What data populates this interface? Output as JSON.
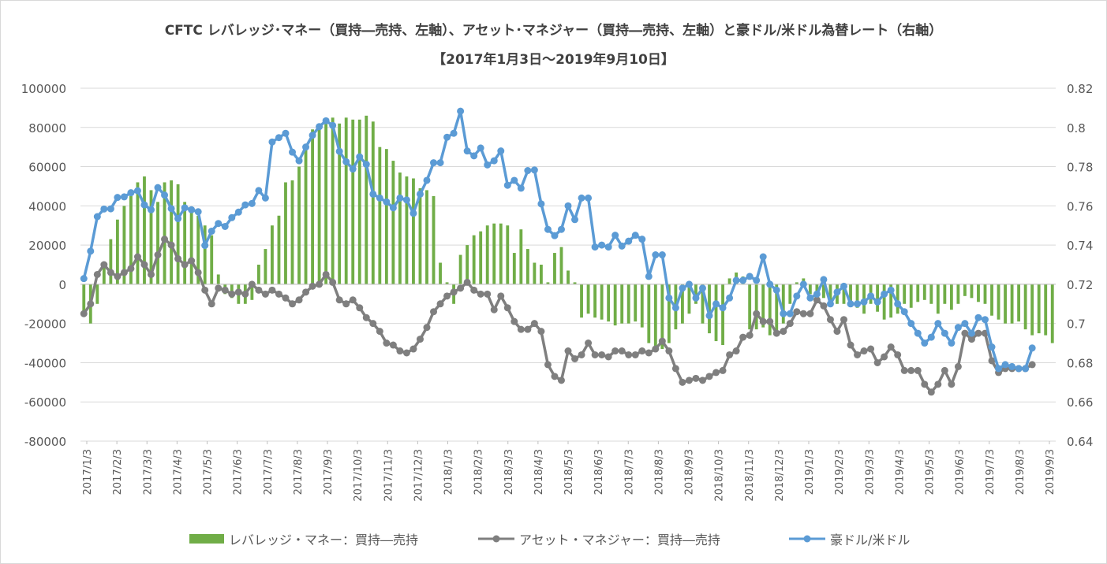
{
  "chart_data": {
    "type": "bar+line",
    "title": "CFTC レバレッジ･マネー（買持―売持、左軸）、アセット･マネジャー（買持―売持、左軸）と豪ドル/米ドル為替レート（右軸）",
    "subtitle": "【2017年1月3日～2019年9月10日】",
    "y_left": {
      "min": -80000,
      "max": 100000,
      "step": 20000,
      "ticks": [
        "100000",
        "80000",
        "60000",
        "40000",
        "20000",
        "0",
        "-20000",
        "-40000",
        "-60000",
        "-80000"
      ]
    },
    "y_right": {
      "min": 0.64,
      "max": 0.82,
      "step": 0.02,
      "ticks": [
        "0.82",
        "0.8",
        "0.78",
        "0.76",
        "0.74",
        "0.72",
        "0.7",
        "0.68",
        "0.66",
        "0.64"
      ]
    },
    "x_ticks": [
      "2017/1/3",
      "2017/2/3",
      "2017/3/3",
      "2017/4/3",
      "2017/5/3",
      "2017/6/3",
      "2017/7/3",
      "2017/8/3",
      "2017/9/3",
      "2017/10/3",
      "2017/11/3",
      "2017/12/3",
      "2018/1/3",
      "2018/2/3",
      "2018/3/3",
      "2018/4/3",
      "2018/5/3",
      "2018/6/3",
      "2018/7/3",
      "2018/8/3",
      "2018/9/3",
      "2018/10/3",
      "2018/11/3",
      "2018/12/3",
      "2019/1/3",
      "2019/2/3",
      "2019/3/3",
      "2019/4/3",
      "2019/5/3",
      "2019/6/3",
      "2019/7/3",
      "2019/8/3",
      "2019/9/3"
    ],
    "legend_position": "bottom",
    "series": [
      {
        "name": "レバレッジ・マネー：買持―売持",
        "type": "bar",
        "axis": "left",
        "color": "#70ad47",
        "values": [
          -15000,
          -20000,
          -10000,
          10000,
          23000,
          33000,
          40000,
          45000,
          52000,
          55000,
          48000,
          42000,
          52000,
          53000,
          51000,
          42000,
          38000,
          35000,
          30000,
          25000,
          5000,
          -5000,
          -7000,
          -10000,
          -10000,
          -8000,
          10000,
          18000,
          30000,
          35000,
          52000,
          53000,
          60000,
          70000,
          79000,
          81000,
          82000,
          85000,
          82000,
          85000,
          84000,
          84000,
          86000,
          83000,
          70000,
          69000,
          63000,
          57000,
          55000,
          54000,
          49000,
          48000,
          45000,
          11000,
          1000,
          -10000,
          15000,
          20000,
          25000,
          27000,
          30000,
          31000,
          31000,
          30000,
          16000,
          28000,
          18000,
          11000,
          10000,
          1000,
          16000,
          19000,
          7000,
          1000,
          -17000,
          -15000,
          -17000,
          -18000,
          -19000,
          -21000,
          -20000,
          -20000,
          -19000,
          -22000,
          -30000,
          -32000,
          -33000,
          -30000,
          -23000,
          -20000,
          -15000,
          -10000,
          -20000,
          -25000,
          -29000,
          -31000,
          3000,
          6000,
          4000,
          -23000,
          -23000,
          -22000,
          -26000,
          -25000,
          -20000,
          -10000,
          1000,
          3000,
          -5000,
          -5000,
          -7000,
          -10000,
          -10000,
          -10000,
          -10000,
          -12000,
          -15000,
          -10000,
          -14000,
          -18000,
          -17000,
          -15000,
          -10000,
          -12000,
          -9000,
          -8000,
          -10000,
          -15000,
          -10000,
          -13000,
          -10000,
          -6000,
          -7000,
          -9000,
          -10000,
          -16000,
          -18000,
          -20000,
          -20000,
          -19000,
          -23000,
          -26000,
          -25000,
          -26000,
          -30000
        ]
      },
      {
        "name": "アセット・マネジャー：買持―売持",
        "type": "line",
        "axis": "left",
        "color": "#7f7f7f",
        "values": [
          -15000,
          -10000,
          5000,
          10000,
          6000,
          4000,
          6000,
          8000,
          14000,
          10000,
          5000,
          15000,
          23000,
          20000,
          13000,
          10000,
          12000,
          6000,
          -3000,
          -10000,
          -2000,
          -3000,
          -5000,
          -4000,
          -5000,
          0,
          -3000,
          -5000,
          -3000,
          -5000,
          -7000,
          -10000,
          -8000,
          -4000,
          -1000,
          0,
          5000,
          1000,
          -8000,
          -10000,
          -8000,
          -12000,
          -17000,
          -20000,
          -24000,
          -30000,
          -31000,
          -34000,
          -35000,
          -33000,
          -28000,
          -22000,
          -14000,
          -10000,
          -6000,
          -4000,
          -2000,
          1000,
          -3000,
          -5000,
          -5000,
          -13000,
          -6000,
          -12000,
          -19000,
          -23000,
          -23000,
          -20000,
          -24000,
          -41000,
          -47000,
          -49000,
          -34000,
          -38000,
          -36000,
          -30000,
          -36000,
          -36000,
          -37000,
          -34000,
          -34000,
          -36000,
          -36000,
          -34000,
          -35000,
          -33000,
          -29000,
          -34000,
          -43000,
          -50000,
          -49000,
          -48000,
          -49000,
          -47000,
          -45000,
          -44000,
          -36000,
          -34000,
          -27000,
          -26000,
          -15000,
          -19000,
          -19000,
          -25000,
          -24000,
          -20000,
          -14000,
          -15000,
          -15000,
          -8000,
          -11000,
          -18000,
          -24000,
          -18000,
          -31000,
          -36000,
          -34000,
          -33000,
          -40000,
          -37000,
          -32000,
          -36000,
          -44000,
          -44000,
          -44000,
          -51000,
          -55000,
          -51000,
          -44000,
          -51000,
          -42000,
          -25000,
          -28000,
          -25000,
          -25000,
          -39000,
          -45000,
          -43000,
          -43000,
          -43000,
          -43000,
          -41000
        ]
      },
      {
        "name": "豪ドル/米ドル",
        "type": "line",
        "axis": "right",
        "color": "#5b9bd5",
        "values": [
          0.7229,
          0.7369,
          0.7545,
          0.7584,
          0.7585,
          0.7643,
          0.7646,
          0.7667,
          0.7677,
          0.7605,
          0.758,
          0.7693,
          0.7655,
          0.7586,
          0.7535,
          0.759,
          0.758,
          0.757,
          0.7398,
          0.7471,
          0.751,
          0.7495,
          0.754,
          0.7568,
          0.7605,
          0.7612,
          0.7678,
          0.764,
          0.7926,
          0.7948,
          0.797,
          0.7874,
          0.783,
          0.79,
          0.796,
          0.8004,
          0.8034,
          0.801,
          0.7878,
          0.7825,
          0.7788,
          0.785,
          0.7812,
          0.766,
          0.764,
          0.762,
          0.759,
          0.764,
          0.763,
          0.7562,
          0.766,
          0.773,
          0.782,
          0.782,
          0.795,
          0.797,
          0.8083,
          0.788,
          0.7855,
          0.7895,
          0.7809,
          0.783,
          0.788,
          0.7705,
          0.773,
          0.769,
          0.778,
          0.7783,
          0.761,
          0.748,
          0.7448,
          0.748,
          0.76,
          0.753,
          0.764,
          0.764,
          0.739,
          0.74,
          0.739,
          0.745,
          0.7395,
          0.742,
          0.745,
          0.743,
          0.724,
          0.735,
          0.735,
          0.713,
          0.708,
          0.718,
          0.72,
          0.713,
          0.718,
          0.704,
          0.71,
          0.708,
          0.713,
          0.722,
          0.722,
          0.724,
          0.722,
          0.734,
          0.72,
          0.717,
          0.705,
          0.705,
          0.714,
          0.72,
          0.713,
          0.715,
          0.7224,
          0.71,
          0.716,
          0.719,
          0.71,
          0.71,
          0.711,
          0.714,
          0.711,
          0.715,
          0.717,
          0.71,
          0.706,
          0.7,
          0.695,
          0.69,
          0.693,
          0.7,
          0.695,
          0.69,
          0.698,
          0.7,
          0.695,
          0.703,
          0.702,
          0.688,
          0.677,
          0.679,
          0.678,
          0.677,
          0.677,
          0.6875
        ]
      }
    ]
  }
}
